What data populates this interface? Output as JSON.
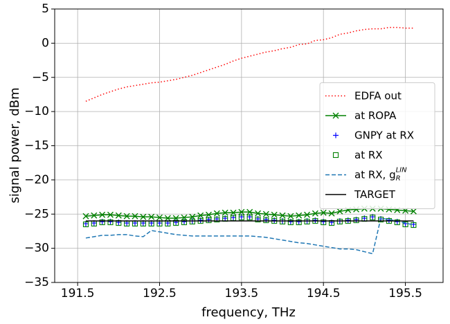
{
  "chart_data": {
    "type": "line",
    "xlabel": "frequency, THz",
    "ylabel": "signal power, dBm",
    "x": [
      191.6,
      191.7,
      191.8,
      191.9,
      192.0,
      192.1,
      192.2,
      192.3,
      192.4,
      192.5,
      192.6,
      192.7,
      192.8,
      192.9,
      193.0,
      193.1,
      193.2,
      193.3,
      193.4,
      193.5,
      193.6,
      193.7,
      193.8,
      193.9,
      194.0,
      194.1,
      194.2,
      194.3,
      194.4,
      194.5,
      194.6,
      194.7,
      194.8,
      194.9,
      195.0,
      195.1,
      195.2,
      195.3,
      195.4,
      195.5,
      195.6
    ],
    "xlim": [
      191.22,
      195.96
    ],
    "xticks": [
      191.5,
      192.5,
      193.5,
      194.5,
      195.5
    ],
    "ylim": [
      -35,
      5
    ],
    "yticks": [
      {
        "value": -35,
        "label": "−35"
      },
      {
        "value": -30,
        "label": "−30"
      },
      {
        "value": -25,
        "label": "−25"
      },
      {
        "value": -20,
        "label": "−20"
      },
      {
        "value": -15,
        "label": "−15"
      },
      {
        "value": -10,
        "label": "−10"
      },
      {
        "value": -5,
        "label": "−5"
      },
      0,
      5
    ],
    "grid": true,
    "legend": "center right",
    "series": [
      {
        "name": "EDFA out",
        "color": "#ff0000",
        "linestyle": "dotted",
        "marker": "none",
        "values": [
          -8.5,
          -8.0,
          -7.5,
          -7.1,
          -6.7,
          -6.4,
          -6.2,
          -6.0,
          -5.8,
          -5.7,
          -5.5,
          -5.3,
          -5.0,
          -4.7,
          -4.3,
          -3.9,
          -3.5,
          -3.1,
          -2.6,
          -2.2,
          -1.9,
          -1.6,
          -1.3,
          -1.1,
          -0.8,
          -0.6,
          -0.2,
          -0.1,
          0.4,
          0.5,
          0.8,
          1.3,
          1.5,
          1.8,
          2.0,
          2.1,
          2.1,
          2.3,
          2.3,
          2.2,
          2.2
        ]
      },
      {
        "name": "at ROPA",
        "color": "#008000",
        "linestyle": "solid",
        "marker": "x",
        "values": [
          -25.3,
          -25.2,
          -25.1,
          -25.1,
          -25.2,
          -25.3,
          -25.3,
          -25.4,
          -25.4,
          -25.5,
          -25.6,
          -25.6,
          -25.5,
          -25.4,
          -25.2,
          -25.1,
          -24.9,
          -24.8,
          -24.8,
          -24.7,
          -24.7,
          -24.9,
          -25.0,
          -25.1,
          -25.2,
          -25.3,
          -25.2,
          -25.1,
          -24.9,
          -24.8,
          -24.9,
          -24.6,
          -24.4,
          -24.3,
          -24.2,
          -24.2,
          -24.2,
          -24.3,
          -24.4,
          -24.5,
          -24.6
        ]
      },
      {
        "name": "GNPY at RX",
        "color": "#0000ff",
        "linestyle": "none",
        "marker": "+",
        "values": [
          -26.4,
          -26.3,
          -26.1,
          -26.1,
          -26.2,
          -26.3,
          -26.3,
          -26.3,
          -26.3,
          -26.3,
          -26.3,
          -26.2,
          -26.1,
          -26.0,
          -25.9,
          -25.8,
          -25.7,
          -25.6,
          -25.5,
          -25.4,
          -25.4,
          -25.7,
          -25.8,
          -25.9,
          -26.0,
          -26.1,
          -26.1,
          -26.0,
          -25.9,
          -26.1,
          -26.2,
          -26.0,
          -25.9,
          -25.8,
          -25.6,
          -25.4,
          -25.7,
          -25.9,
          -26.1,
          -26.4,
          -26.5
        ]
      },
      {
        "name": "at RX",
        "color": "#008000",
        "linestyle": "none",
        "marker": "square",
        "values": [
          -26.5,
          -26.4,
          -26.2,
          -26.2,
          -26.3,
          -26.4,
          -26.4,
          -26.4,
          -26.4,
          -26.4,
          -26.4,
          -26.3,
          -26.2,
          -26.1,
          -26.0,
          -25.9,
          -25.8,
          -25.7,
          -25.6,
          -25.5,
          -25.5,
          -25.8,
          -25.9,
          -26.0,
          -26.1,
          -26.2,
          -26.2,
          -26.1,
          -26.0,
          -26.2,
          -26.3,
          -26.1,
          -26.0,
          -25.9,
          -25.7,
          -25.5,
          -25.8,
          -26.0,
          -26.2,
          -26.5,
          -26.6
        ]
      },
      {
        "name": "at RX, g",
        "name_sub": "R",
        "name_sup": "LIN",
        "color": "#1f77b4",
        "linestyle": "dashed",
        "marker": "none",
        "values": [
          -28.5,
          -28.3,
          -28.1,
          -28.1,
          -28.0,
          -28.0,
          -28.2,
          -28.3,
          -27.4,
          -27.6,
          -27.8,
          -28.0,
          -28.1,
          -28.2,
          -28.2,
          -28.2,
          -28.2,
          -28.2,
          -28.2,
          -28.2,
          -28.2,
          -28.3,
          -28.4,
          -28.6,
          -28.8,
          -29.0,
          -29.2,
          -29.3,
          -29.5,
          -29.7,
          -29.9,
          -30.1,
          -30.1,
          -30.2,
          -30.5,
          -30.8,
          -25.6,
          -25.8,
          -26.0,
          -26.3,
          -26.6
        ]
      },
      {
        "name": "TARGET",
        "color": "#000000",
        "linestyle": "solid",
        "marker": "none",
        "values": [
          -26,
          -26,
          -26,
          -26,
          -26,
          -26,
          -26,
          -26,
          -26,
          -26,
          -26,
          -26,
          -26,
          -26,
          -26,
          -26,
          -26,
          -26,
          -26,
          -26,
          -26,
          -26,
          -26,
          -26,
          -26,
          -26,
          -26,
          -26,
          -26,
          -26,
          -26,
          -26,
          -26,
          -26,
          -26,
          -26,
          -26,
          -26,
          -26,
          -26,
          -26
        ]
      }
    ]
  }
}
